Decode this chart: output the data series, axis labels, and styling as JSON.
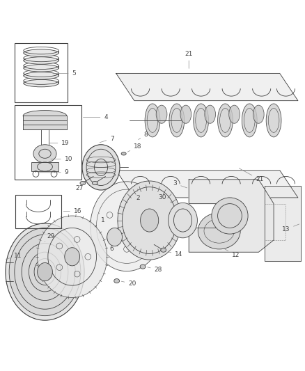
{
  "bg_color": "#ffffff",
  "line_color": "#404040",
  "label_color": "#555555",
  "lw_thin": 0.6,
  "lw_med": 0.8
}
